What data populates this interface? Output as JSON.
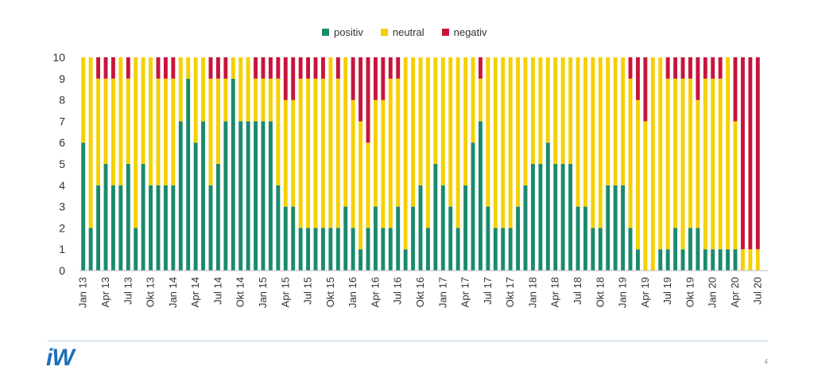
{
  "chart_data": {
    "type": "bar",
    "stacked": true,
    "ylim": [
      0,
      10
    ],
    "yticks": [
      0,
      1,
      2,
      3,
      4,
      5,
      6,
      7,
      8,
      9,
      10
    ],
    "xtick_labels": [
      "Jan 13",
      "Apr 13",
      "Jul 13",
      "Okt 13",
      "Jan 14",
      "Apr 14",
      "Jul 14",
      "Okt 14",
      "Jan 15",
      "Apr 15",
      "Jul 15",
      "Okt 15",
      "Jan 16",
      "Apr 16",
      "Jul 16",
      "Okt 16",
      "Jan 17",
      "Apr 17",
      "Jul 17",
      "Okt 17",
      "Jan 18",
      "Apr 18",
      "Jul 18",
      "Okt 18",
      "Jan 19",
      "Apr 19",
      "Jul 19",
      "Okt 19",
      "Jan 20",
      "Apr 20",
      "Jul 20"
    ],
    "x_first": "Jan 13",
    "x_last": "Jul 20",
    "legend_position": "top",
    "series": [
      {
        "name": "positiv",
        "color": "#1a8a6e",
        "values": [
          6,
          2,
          4,
          5,
          4,
          4,
          5,
          2,
          5,
          4,
          4,
          4,
          4,
          7,
          9,
          6,
          7,
          4,
          5,
          7,
          9,
          7,
          7,
          7,
          7,
          7,
          4,
          3,
          3,
          2,
          2,
          2,
          2,
          2,
          2,
          3,
          2,
          1,
          2,
          3,
          2,
          2,
          3,
          1,
          3,
          4,
          2,
          5,
          4,
          3,
          2,
          4,
          6,
          7,
          3,
          2,
          2,
          2,
          3,
          4,
          5,
          5,
          6,
          5,
          5,
          5,
          3,
          3,
          2,
          2,
          4,
          4,
          4,
          2,
          1,
          0,
          0,
          1,
          1,
          2,
          1,
          2,
          2,
          1,
          1,
          1,
          1,
          1,
          0,
          0,
          0
        ]
      },
      {
        "name": "neutral",
        "color": "#f5d000",
        "values": [
          4,
          8,
          5,
          4,
          5,
          6,
          4,
          8,
          5,
          6,
          5,
          5,
          5,
          3,
          1,
          4,
          3,
          5,
          4,
          2,
          1,
          3,
          3,
          2,
          2,
          2,
          5,
          5,
          5,
          7,
          7,
          7,
          7,
          8,
          7,
          7,
          6,
          6,
          4,
          5,
          6,
          7,
          6,
          9,
          7,
          6,
          8,
          5,
          6,
          7,
          8,
          6,
          4,
          2,
          7,
          8,
          8,
          8,
          7,
          6,
          5,
          5,
          4,
          5,
          5,
          5,
          7,
          7,
          8,
          8,
          6,
          6,
          6,
          7,
          7,
          7,
          10,
          9,
          8,
          7,
          8,
          7,
          6,
          8,
          8,
          8,
          9,
          6,
          1,
          1,
          1
        ]
      },
      {
        "name": "negativ",
        "color": "#c8143c",
        "values": [
          0,
          0,
          1,
          1,
          1,
          0,
          1,
          0,
          0,
          0,
          1,
          1,
          1,
          0,
          0,
          0,
          0,
          1,
          1,
          1,
          0,
          0,
          0,
          1,
          1,
          1,
          1,
          2,
          2,
          1,
          1,
          1,
          1,
          0,
          1,
          0,
          2,
          3,
          4,
          2,
          2,
          1,
          1,
          0,
          0,
          0,
          0,
          0,
          0,
          0,
          0,
          0,
          0,
          1,
          0,
          0,
          0,
          0,
          0,
          0,
          0,
          0,
          0,
          0,
          0,
          0,
          0,
          0,
          0,
          0,
          0,
          0,
          0,
          1,
          2,
          3,
          0,
          0,
          1,
          1,
          1,
          1,
          2,
          1,
          1,
          1,
          0,
          3,
          9,
          9,
          9
        ]
      }
    ]
  },
  "legend": [
    {
      "label": "positiv",
      "color": "#1a8a6e"
    },
    {
      "label": "neutral",
      "color": "#f5d000"
    },
    {
      "label": "negativ",
      "color": "#c8143c"
    }
  ],
  "footer": {
    "logo": "iW",
    "page_number": "4"
  }
}
